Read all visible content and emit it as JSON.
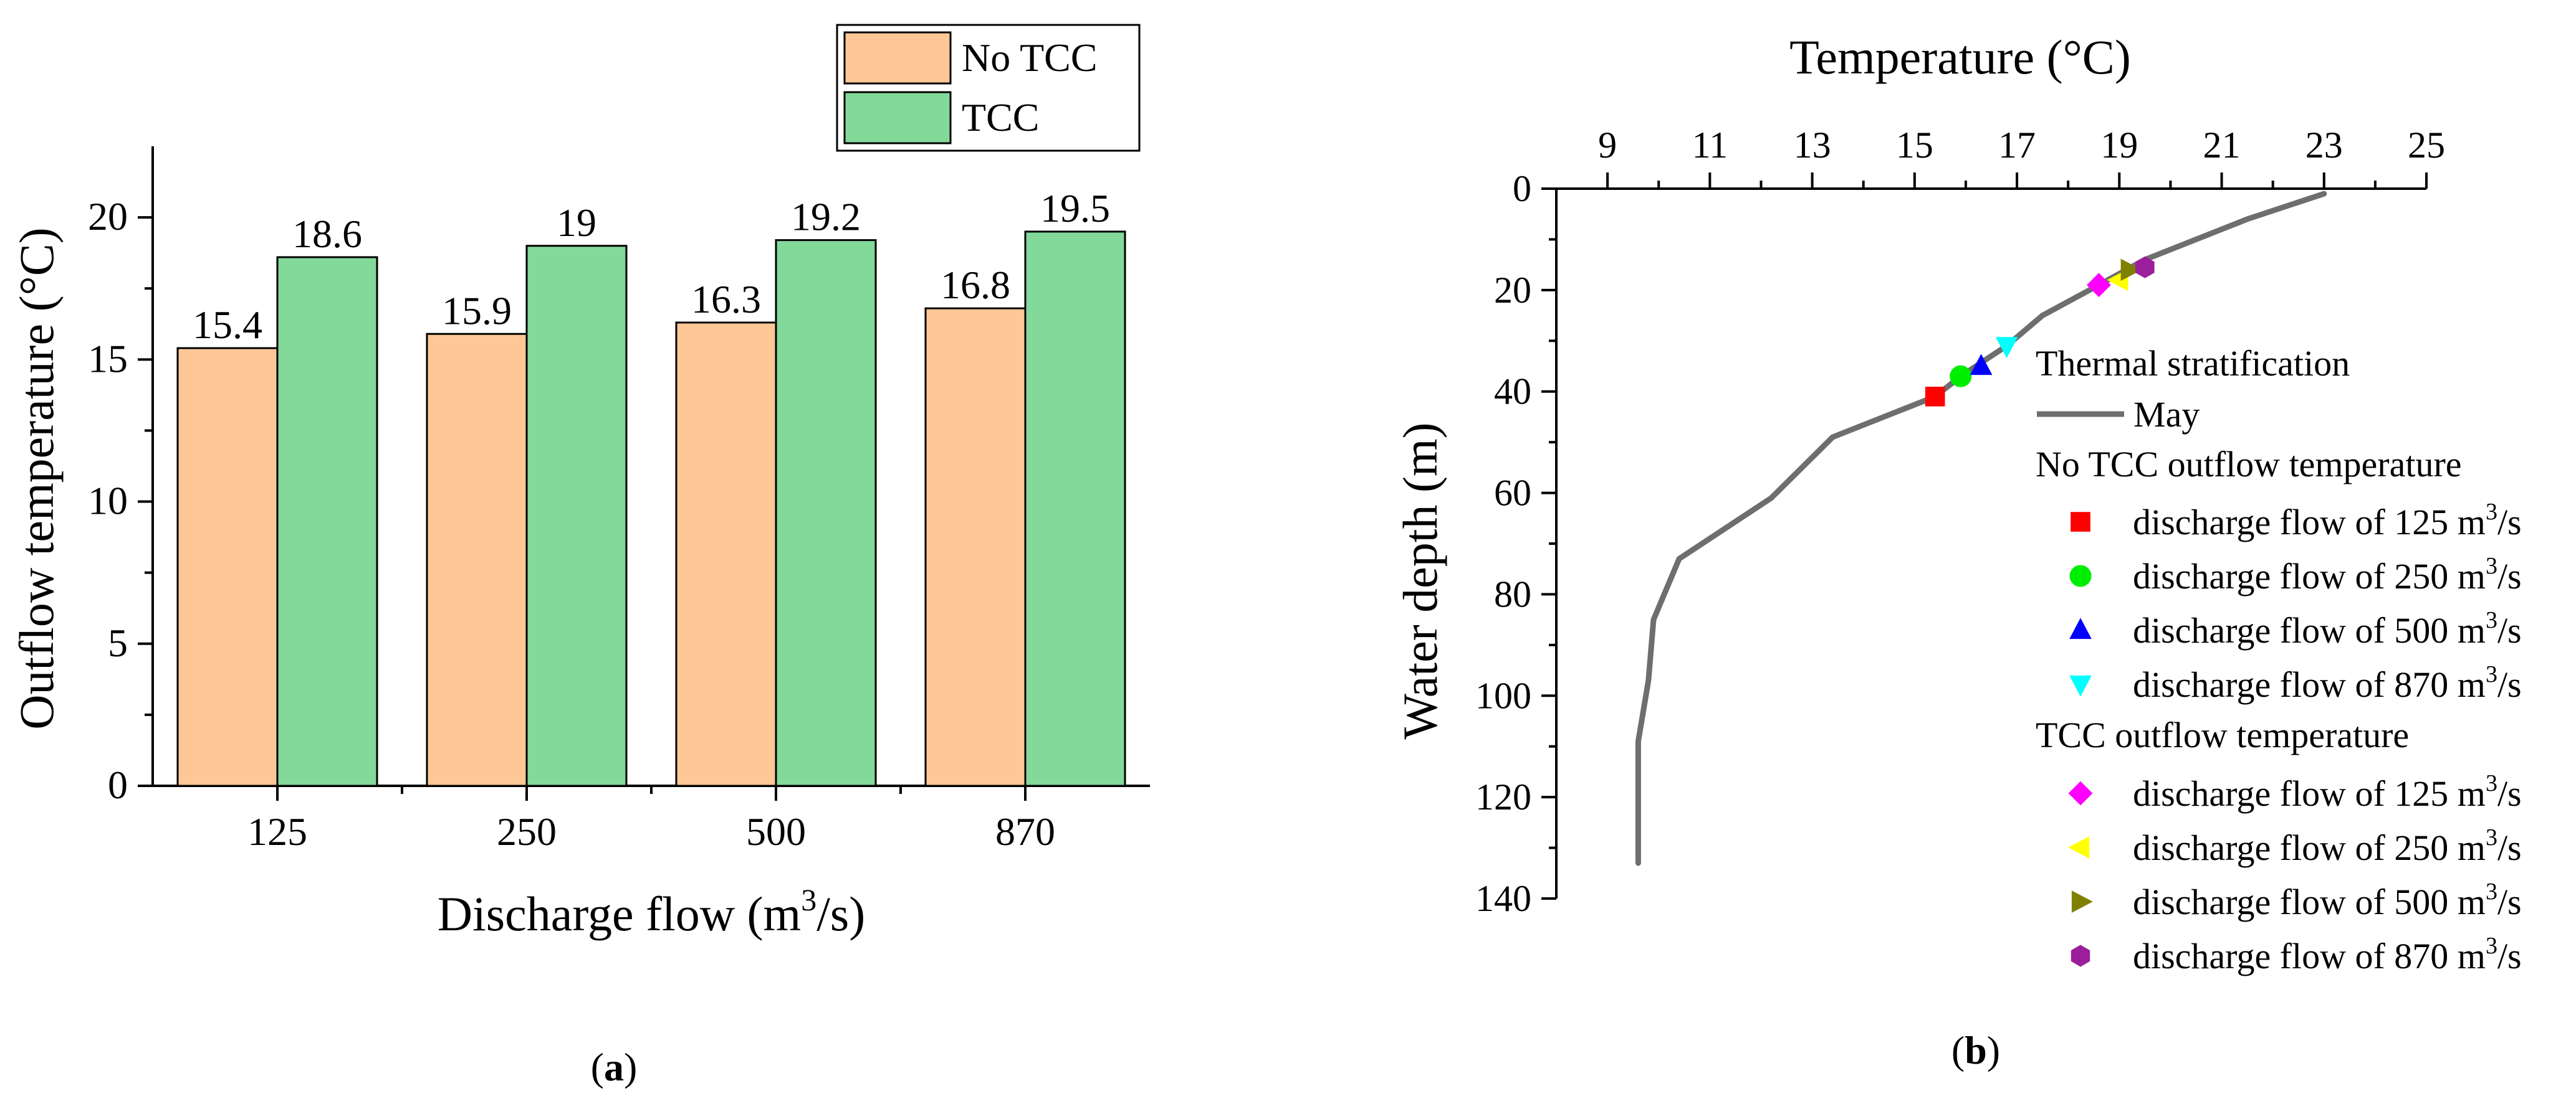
{
  "chart_data": [
    {
      "panel_label": "a",
      "type": "bar",
      "categories": [
        "125",
        "250",
        "500",
        "870"
      ],
      "series": [
        {
          "name": "No TCC",
          "color": "#FDC896",
          "values": [
            15.4,
            15.9,
            16.3,
            16.8
          ],
          "labels": [
            "15.4",
            "15.9",
            "16.3",
            "16.8"
          ]
        },
        {
          "name": "TCC",
          "color": "#82D99A",
          "values": [
            18.6,
            19.0,
            19.2,
            19.5
          ],
          "labels": [
            "18.6",
            "19",
            "19.2",
            "19.5"
          ]
        }
      ],
      "xlabel_main": "Discharge flow (m",
      "xlabel_sup": "3",
      "xlabel_tail": "/s)",
      "ylabel": "Outflow temperature (°C)",
      "ylim": [
        0,
        22.5
      ],
      "yticks": [
        "0",
        "5",
        "10",
        "15",
        "20"
      ],
      "legend_position": "top-right"
    },
    {
      "panel_label": "b",
      "type": "scatter",
      "title": "Temperature (°C)",
      "ylabel": "Water depth (m)",
      "xlim": [
        8,
        25
      ],
      "ylim_inverted": [
        0,
        140
      ],
      "xticks": [
        "9",
        "11",
        "13",
        "15",
        "17",
        "19",
        "21",
        "23",
        "25"
      ],
      "yticks": [
        "0",
        "20",
        "40",
        "60",
        "80",
        "100",
        "120",
        "140"
      ],
      "profile": {
        "name": "May",
        "color": "#6E6E6E",
        "points": [
          [
            23,
            1
          ],
          [
            21.5,
            6
          ],
          [
            19.5,
            14
          ],
          [
            18.6,
            19
          ],
          [
            17.5,
            25
          ],
          [
            16.8,
            31
          ],
          [
            15.9,
            37
          ],
          [
            15.4,
            41
          ],
          [
            13.4,
            49
          ],
          [
            12.2,
            61
          ],
          [
            10.4,
            73
          ],
          [
            9.9,
            85
          ],
          [
            9.8,
            97
          ],
          [
            9.6,
            109
          ],
          [
            9.6,
            133
          ]
        ]
      },
      "legend": {
        "header": "Thermal stratification",
        "group1_title": "No TCC outflow temperature",
        "group2_title": "TCC outflow temperature",
        "marker_label_main": "discharge flow of ",
        "marker_label_unit": " m",
        "marker_label_sup": "3",
        "marker_label_tail": "/s"
      },
      "markers": [
        {
          "group": "No TCC",
          "flow": "125",
          "shape": "square",
          "color": "#FF0000",
          "temperature": 15.4,
          "depth": 41
        },
        {
          "group": "No TCC",
          "flow": "250",
          "shape": "circle",
          "color": "#00EE00",
          "temperature": 15.9,
          "depth": 37
        },
        {
          "group": "No TCC",
          "flow": "500",
          "shape": "triangle-up",
          "color": "#0000FF",
          "temperature": 16.3,
          "depth": 35
        },
        {
          "group": "No TCC",
          "flow": "870",
          "shape": "triangle-down",
          "color": "#00FFFF",
          "temperature": 16.8,
          "depth": 31
        },
        {
          "group": "TCC",
          "flow": "125",
          "shape": "diamond",
          "color": "#FF00FF",
          "temperature": 18.6,
          "depth": 19
        },
        {
          "group": "TCC",
          "flow": "250",
          "shape": "triangle-left",
          "color": "#FFFF00",
          "temperature": 19.0,
          "depth": 18
        },
        {
          "group": "TCC",
          "flow": "500",
          "shape": "triangle-right",
          "color": "#808000",
          "temperature": 19.2,
          "depth": 16
        },
        {
          "group": "TCC",
          "flow": "870",
          "shape": "hexagon",
          "color": "#9B1F9B",
          "temperature": 19.5,
          "depth": 15.5
        }
      ]
    }
  ]
}
